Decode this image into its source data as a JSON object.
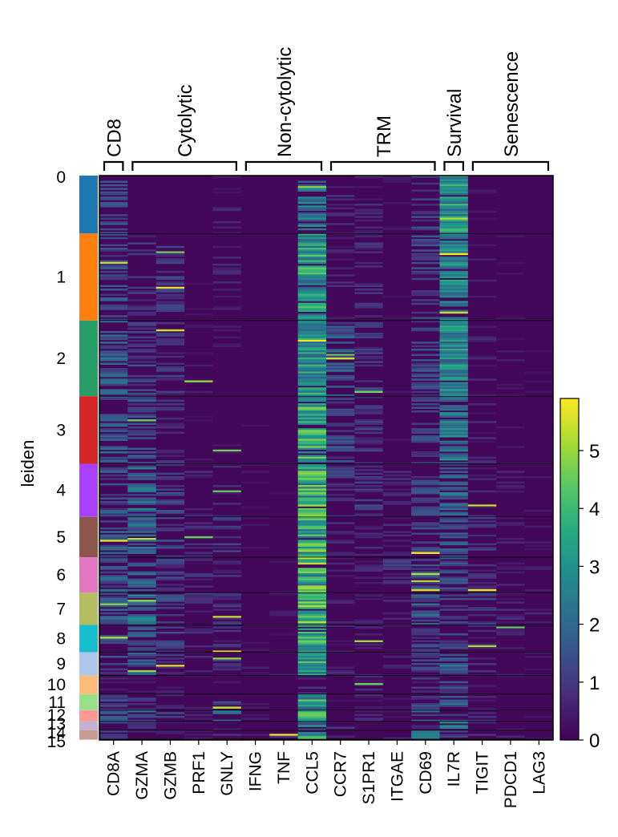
{
  "chart_data": {
    "type": "heatmap",
    "ylabel": "leiden",
    "groups": [
      {
        "label": "CD8",
        "genes": [
          "CD8A"
        ]
      },
      {
        "label": "Cytolytic",
        "genes": [
          "GZMA",
          "GZMB",
          "PRF1",
          "GNLY"
        ]
      },
      {
        "label": "Non-cytolytic",
        "genes": [
          "IFNG",
          "TNF",
          "CCL5"
        ]
      },
      {
        "label": "TRM",
        "genes": [
          "CCR7",
          "S1PR1",
          "ITGAE",
          "CD69"
        ]
      },
      {
        "label": "Survival",
        "genes": [
          "IL7R"
        ]
      },
      {
        "label": "Senescence",
        "genes": [
          "TIGIT",
          "PDCD1",
          "LAG3"
        ]
      }
    ],
    "genes": [
      "CD8A",
      "GZMA",
      "GZMB",
      "PRF1",
      "GNLY",
      "IFNG",
      "TNF",
      "CCL5",
      "CCR7",
      "S1PR1",
      "ITGAE",
      "CD69",
      "IL7R",
      "TIGIT",
      "PDCD1",
      "LAG3"
    ],
    "clusters": [
      {
        "label": "0",
        "size": 72,
        "color": "#1f77b4"
      },
      {
        "label": "1",
        "size": 108,
        "color": "#ff7f0e"
      },
      {
        "label": "2",
        "size": 94,
        "color": "#279e68"
      },
      {
        "label": "3",
        "size": 84,
        "color": "#d62728"
      },
      {
        "label": "4",
        "size": 66,
        "color": "#aa40fc"
      },
      {
        "label": "5",
        "size": 50,
        "color": "#8c564b"
      },
      {
        "label": "6",
        "size": 44,
        "color": "#e377c2"
      },
      {
        "label": "7",
        "size": 40,
        "color": "#b5bd61"
      },
      {
        "label": "8",
        "size": 34,
        "color": "#17becf"
      },
      {
        "label": "9",
        "size": 29,
        "color": "#aec7e8"
      },
      {
        "label": "10",
        "size": 23,
        "color": "#ffbb78"
      },
      {
        "label": "11",
        "size": 20,
        "color": "#98df8a"
      },
      {
        "label": "12",
        "size": 14,
        "color": "#ff9896"
      },
      {
        "label": "13",
        "size": 11,
        "color": "#c5b0d5"
      },
      {
        "label": "14",
        "size": 11,
        "color": "#c49c94"
      },
      {
        "label": "15",
        "size": 1,
        "color": "#f7b6d2"
      }
    ],
    "mean_expression": [
      [
        1.3,
        0.25,
        0.15,
        0.1,
        0.5,
        0.15,
        0.1,
        2.2,
        0.6,
        0.7,
        0.35,
        1.2,
        2.9,
        0.3,
        0.2,
        0.1
      ],
      [
        1.3,
        0.8,
        1.0,
        0.25,
        0.6,
        0.2,
        0.15,
        3.1,
        0.6,
        0.7,
        0.25,
        1.2,
        2.6,
        0.4,
        0.25,
        0.2
      ],
      [
        1.6,
        1.1,
        0.9,
        0.35,
        0.45,
        0.2,
        0.15,
        3.0,
        1.6,
        1.0,
        0.3,
        1.2,
        2.7,
        0.55,
        0.35,
        0.25
      ],
      [
        1.5,
        1.4,
        0.7,
        0.3,
        0.3,
        0.25,
        0.2,
        3.4,
        1.4,
        0.9,
        0.3,
        1.2,
        2.2,
        0.55,
        0.3,
        0.2
      ],
      [
        1.4,
        2.0,
        1.1,
        0.6,
        0.6,
        0.3,
        0.25,
        3.6,
        1.0,
        1.0,
        0.7,
        1.2,
        1.8,
        0.7,
        0.45,
        0.35
      ],
      [
        1.6,
        2.0,
        1.2,
        0.9,
        1.0,
        0.3,
        0.25,
        3.5,
        0.6,
        0.6,
        0.6,
        1.1,
        1.5,
        0.9,
        0.5,
        0.4
      ],
      [
        1.7,
        1.6,
        1.1,
        0.8,
        0.7,
        0.25,
        0.25,
        3.6,
        0.6,
        0.6,
        0.9,
        1.4,
        1.3,
        0.8,
        0.55,
        0.4
      ],
      [
        1.6,
        2.2,
        1.3,
        0.9,
        0.9,
        0.3,
        0.35,
        3.8,
        0.5,
        0.5,
        0.6,
        1.6,
        1.2,
        1.0,
        0.6,
        0.5
      ],
      [
        1.3,
        1.7,
        1.0,
        0.6,
        0.7,
        0.3,
        0.3,
        3.5,
        0.5,
        0.6,
        0.6,
        1.4,
        1.1,
        0.8,
        0.5,
        0.35
      ],
      [
        1.2,
        1.4,
        0.8,
        0.7,
        0.9,
        0.4,
        0.4,
        3.3,
        0.6,
        0.7,
        0.5,
        1.2,
        1.8,
        0.7,
        0.5,
        0.3
      ],
      [
        0.5,
        0.5,
        0.4,
        0.3,
        0.3,
        0.1,
        0.1,
        0.8,
        0.4,
        0.6,
        0.2,
        0.8,
        1.2,
        0.4,
        0.3,
        0.2
      ],
      [
        1.3,
        0.8,
        0.6,
        0.4,
        1.2,
        0.3,
        0.2,
        2.6,
        0.6,
        0.6,
        0.3,
        1.2,
        2.0,
        0.5,
        0.3,
        0.2
      ],
      [
        1.4,
        1.6,
        1.1,
        0.6,
        1.8,
        0.4,
        0.3,
        3.6,
        0.5,
        0.6,
        0.4,
        1.6,
        1.5,
        0.8,
        0.5,
        0.3
      ],
      [
        1.2,
        0.8,
        0.6,
        0.4,
        0.8,
        0.2,
        0.2,
        2.2,
        1.0,
        0.7,
        0.3,
        0.9,
        2.4,
        0.5,
        0.3,
        0.2
      ],
      [
        1.2,
        1.2,
        0.8,
        0.5,
        1.0,
        0.4,
        1.0,
        3.3,
        0.5,
        0.5,
        0.9,
        2.8,
        1.2,
        0.8,
        0.6,
        0.4
      ],
      [
        1.0,
        1.0,
        0.6,
        0.4,
        0.6,
        0.3,
        0.3,
        2.5,
        0.5,
        0.5,
        0.5,
        1.5,
        1.5,
        0.6,
        0.4,
        0.3
      ]
    ],
    "colorbar": {
      "colormap": "viridis",
      "vmin": 0,
      "vmax": 5.9,
      "ticks": [
        0,
        1,
        2,
        3,
        4,
        5
      ]
    }
  }
}
